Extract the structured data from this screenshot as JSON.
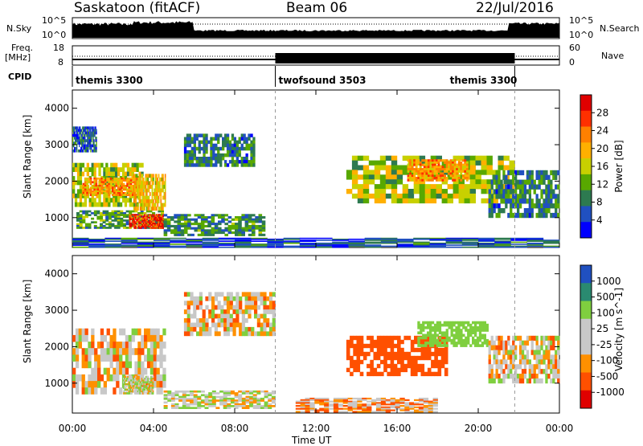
{
  "header": {
    "station": "Saskatoon (fitACF)",
    "beam": "Beam 06",
    "date": "22/Jul/2016"
  },
  "left_labels": {
    "nsky": "N.Sky",
    "freq": "Freq.",
    "freq_unit": "[MHz]",
    "cpid": "CPID"
  },
  "right_labels": {
    "nsearch": "N.Search",
    "nave": "Nave"
  },
  "nsky_axis": {
    "top": "10^5",
    "bottom": "10^0"
  },
  "freq_axis": {
    "left_top": "18",
    "left_bottom": "8",
    "right_top": "60",
    "right_bottom": "0"
  },
  "cpid_segments": [
    {
      "label": "themis 3300",
      "start_hour": 0
    },
    {
      "label": "twofsound 3503",
      "start_hour": 10
    },
    {
      "label": "themis 3300",
      "start_hour": 21.8,
      "label_hour": 18.6
    }
  ],
  "power_colorbar": {
    "title": "Power [dB]",
    "ticks": [
      "28",
      "24",
      "20",
      "16",
      "12",
      "8",
      "4"
    ],
    "colors": [
      "#e00000",
      "#ff3000",
      "#ff8000",
      "#ffb000",
      "#c8d000",
      "#58a800",
      "#2d7a50",
      "#2050c0",
      "#0000ff"
    ]
  },
  "velocity_colorbar": {
    "title": "Velocity [m s^-1]",
    "ticks": [
      "1000",
      "500",
      "100",
      "25",
      "-25",
      "-100",
      "-500",
      "-1000"
    ],
    "colors": [
      "#2050c0",
      "#2a8a70",
      "#7fcf3f",
      "#c8c8c8",
      "#c8c8c8",
      "#ff9000",
      "#ff5000",
      "#e00000"
    ]
  },
  "chart_data": [
    {
      "type": "heatmap",
      "title": "Power",
      "ylabel": "Slant Range [km]",
      "xlabel": "Time UT",
      "xlim": [
        "00:00",
        "24:00"
      ],
      "ylim": [
        180,
        4500
      ],
      "x_ticks": [
        "00:00",
        "04:00",
        "08:00",
        "12:00",
        "16:00",
        "20:00",
        "00:00"
      ],
      "y_ticks": [
        1000,
        2000,
        3000,
        4000
      ],
      "scale": "Power [dB]",
      "scale_range": [
        0,
        30
      ],
      "regions": [
        {
          "t0": 0.0,
          "t1": 3.5,
          "r0": 1300,
          "r1": 2500,
          "value": 14
        },
        {
          "t0": 0.5,
          "t1": 3.2,
          "r0": 1600,
          "r1": 2100,
          "value": 20
        },
        {
          "t0": 0.2,
          "t1": 4.5,
          "r0": 700,
          "r1": 1200,
          "value": 10
        },
        {
          "t0": 2.8,
          "t1": 4.5,
          "r0": 700,
          "r1": 1100,
          "value": 26
        },
        {
          "t0": 3.0,
          "t1": 4.6,
          "r0": 1200,
          "r1": 2200,
          "value": 18
        },
        {
          "t0": 4.5,
          "t1": 9.5,
          "r0": 500,
          "r1": 1100,
          "value": 9
        },
        {
          "t0": 5.5,
          "t1": 9.0,
          "r0": 2400,
          "r1": 3300,
          "value": 8
        },
        {
          "t0": 0.0,
          "t1": 1.2,
          "r0": 2800,
          "r1": 3500,
          "value": 6
        },
        {
          "t0": 13.5,
          "t1": 21.8,
          "r0": 1400,
          "r1": 2700,
          "value": 14
        },
        {
          "t0": 16.5,
          "t1": 19.5,
          "r0": 2000,
          "r1": 2600,
          "value": 20
        },
        {
          "t0": 20.5,
          "t1": 24.0,
          "r0": 1000,
          "r1": 2300,
          "value": 8
        },
        {
          "t0": 0.0,
          "t1": 24.0,
          "r0": 180,
          "r1": 450,
          "value": 6
        }
      ]
    },
    {
      "type": "heatmap",
      "title": "Velocity",
      "ylabel": "Slant Range [km]",
      "xlabel": "Time UT",
      "xlim": [
        "00:00",
        "24:00"
      ],
      "ylim": [
        180,
        4500
      ],
      "x_ticks": [
        "00:00",
        "04:00",
        "08:00",
        "12:00",
        "16:00",
        "20:00",
        "00:00"
      ],
      "y_ticks": [
        1000,
        2000,
        3000,
        4000
      ],
      "scale": "Velocity [m s^-1]",
      "scale_range": [
        -1000,
        1000
      ],
      "regions": [
        {
          "t0": 0.0,
          "t1": 4.6,
          "r0": 700,
          "r1": 2500,
          "value": 0
        },
        {
          "t0": 2.5,
          "t1": 4.0,
          "r0": 700,
          "r1": 1200,
          "value": 60
        },
        {
          "t0": 4.5,
          "t1": 10.0,
          "r0": 300,
          "r1": 800,
          "value": 60
        },
        {
          "t0": 5.5,
          "t1": 10.0,
          "r0": 2300,
          "r1": 3500,
          "value": 0
        },
        {
          "t0": 13.5,
          "t1": 18.5,
          "r0": 1200,
          "r1": 2300,
          "value": -300
        },
        {
          "t0": 17.0,
          "t1": 20.5,
          "r0": 2000,
          "r1": 2700,
          "value": 300
        },
        {
          "t0": 11.0,
          "t1": 18.0,
          "r0": 200,
          "r1": 600,
          "value": -60
        },
        {
          "t0": 20.5,
          "t1": 24.0,
          "r0": 1000,
          "r1": 2300,
          "value": 0
        }
      ]
    }
  ]
}
